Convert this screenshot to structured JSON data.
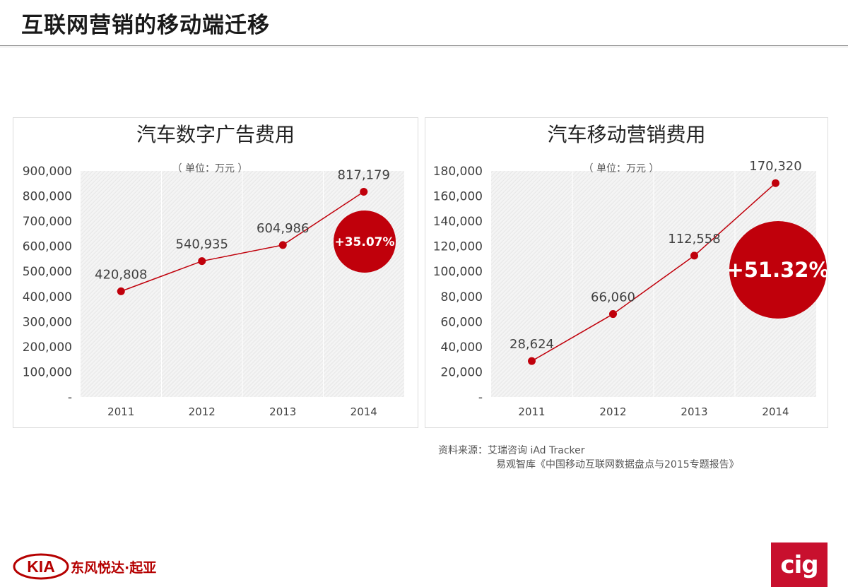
{
  "page": {
    "title": "互联网营销的移动端迁移"
  },
  "source": {
    "line1": "资料来源：艾瑞咨询 iAd Tracker",
    "line2": "易观智库《中国移动互联网数据盘点与2015专题报告》"
  },
  "brand": {
    "kia_logo_text": "KIA",
    "kia_cn": "东风悦达·起亚",
    "cig_logo_text": "cig"
  },
  "colors": {
    "line": "#c0000b",
    "point": "#c0000b",
    "badge": "#c0000b",
    "title_text": "#1a1a1a"
  },
  "chart_data": [
    {
      "type": "line",
      "title": "汽车数字广告费用",
      "subtitle": "（ 单位：万元 ）",
      "categories": [
        "2011",
        "2012",
        "2013",
        "2014"
      ],
      "values": [
        420808,
        540935,
        604986,
        817179
      ],
      "value_labels": [
        "420,808",
        "540,935",
        "604,986",
        "817,179"
      ],
      "ylim": [
        0,
        900000
      ],
      "yticks": [
        "-",
        "100,000",
        "200,000",
        "300,000",
        "400,000",
        "500,000",
        "600,000",
        "700,000",
        "800,000",
        "900,000"
      ],
      "grid": false,
      "badge": "+35.07%"
    },
    {
      "type": "line",
      "title": "汽车移动营销费用",
      "subtitle": "（ 单位：万元 ）",
      "categories": [
        "2011",
        "2012",
        "2013",
        "2014"
      ],
      "values": [
        28624,
        66060,
        112558,
        170320
      ],
      "value_labels": [
        "28,624",
        "66,060",
        "112,558",
        "170,320"
      ],
      "ylim": [
        0,
        180000
      ],
      "yticks": [
        "-",
        "20,000",
        "40,000",
        "60,000",
        "80,000",
        "100,000",
        "120,000",
        "140,000",
        "160,000",
        "180,000"
      ],
      "grid": false,
      "badge": "+51.32%"
    }
  ]
}
